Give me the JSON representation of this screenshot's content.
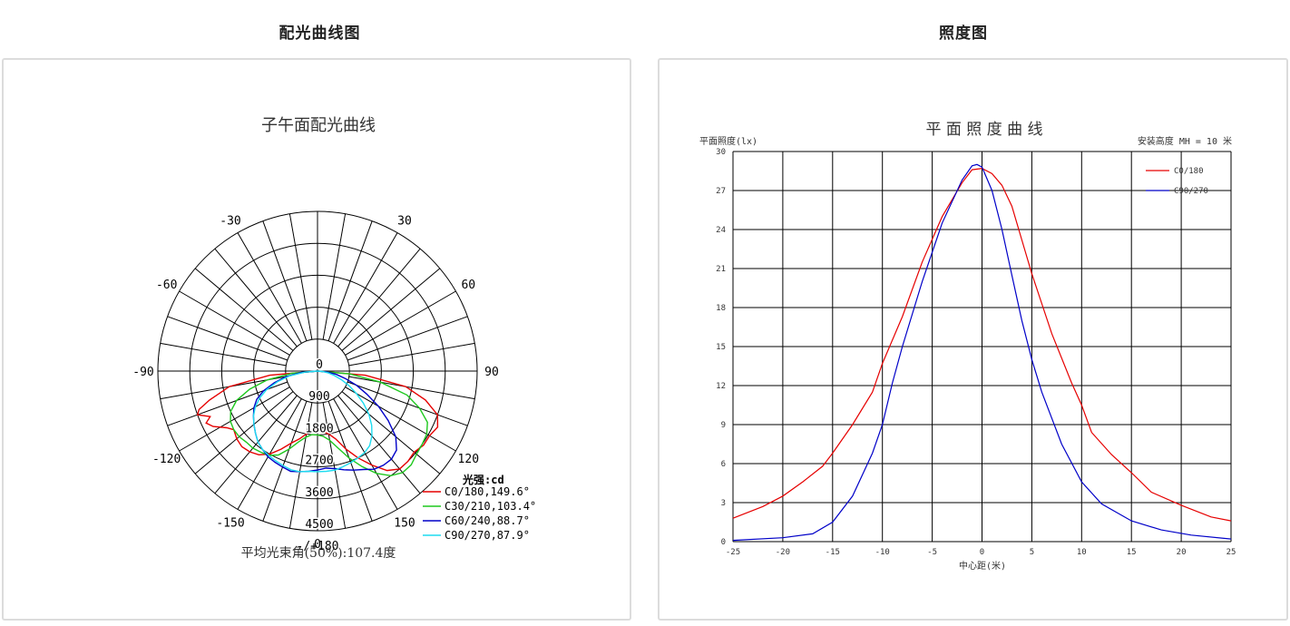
{
  "left_section": {
    "title": "配光曲线图"
  },
  "right_section": {
    "title": "照度图"
  },
  "chart_data": [
    {
      "type": "polar",
      "title": "子午面配光曲线",
      "angle_labels": [
        {
          "angle": 180,
          "text": "-/+180"
        },
        {
          "angle": 150,
          "text": "150"
        },
        {
          "angle": 120,
          "text": "120"
        },
        {
          "angle": 90,
          "text": "90"
        },
        {
          "angle": 60,
          "text": "60"
        },
        {
          "angle": 30,
          "text": "30"
        },
        {
          "angle": 0,
          "text": "0"
        },
        {
          "angle": -30,
          "text": "-30"
        },
        {
          "angle": -60,
          "text": "-60"
        },
        {
          "angle": -90,
          "text": "-90"
        },
        {
          "angle": -120,
          "text": "-120"
        },
        {
          "angle": -150,
          "text": "-150"
        }
      ],
      "radial_ticks": [
        "0",
        "900",
        "1800",
        "2700",
        "3600",
        "4500"
      ],
      "r_max": 5000,
      "unit_label": "光强:cd",
      "footer": "平均光束角(50%):107.4度",
      "series": [
        {
          "name": "C0/180,149.6°",
          "color": "#e60000",
          "points": [
            [
              -85,
              1500
            ],
            [
              -80,
              2800
            ],
            [
              -75,
              3500
            ],
            [
              -72,
              3900
            ],
            [
              -70,
              4000
            ],
            [
              -67,
              3650
            ],
            [
              -65,
              3850
            ],
            [
              -62,
              3700
            ],
            [
              -58,
              3350
            ],
            [
              -55,
              3200
            ],
            [
              -50,
              3300
            ],
            [
              -45,
              3350
            ],
            [
              -40,
              3300
            ],
            [
              -35,
              3200
            ],
            [
              -30,
              3000
            ],
            [
              -25,
              2700
            ],
            [
              -20,
              2400
            ],
            [
              -15,
              2200
            ],
            [
              -10,
              2000
            ],
            [
              -5,
              1850
            ],
            [
              0,
              1800
            ],
            [
              5,
              1900
            ],
            [
              10,
              2000
            ],
            [
              15,
              2200
            ],
            [
              20,
              2600
            ],
            [
              25,
              3000
            ],
            [
              30,
              3400
            ],
            [
              35,
              3800
            ],
            [
              40,
              4000
            ],
            [
              45,
              4000
            ],
            [
              50,
              3950
            ],
            [
              55,
              4050
            ],
            [
              60,
              4050
            ],
            [
              65,
              4150
            ],
            [
              70,
              4000
            ],
            [
              75,
              3500
            ],
            [
              80,
              2800
            ],
            [
              85,
              1500
            ]
          ]
        },
        {
          "name": "C30/210,103.4°",
          "color": "#1ec81e",
          "points": [
            [
              -85,
              800
            ],
            [
              -80,
              1600
            ],
            [
              -75,
              2200
            ],
            [
              -70,
              2700
            ],
            [
              -65,
              3000
            ],
            [
              -60,
              3150
            ],
            [
              -55,
              3200
            ],
            [
              -50,
              3200
            ],
            [
              -45,
              3150
            ],
            [
              -40,
              3150
            ],
            [
              -35,
              3100
            ],
            [
              -30,
              3050
            ],
            [
              -25,
              2900
            ],
            [
              -20,
              2600
            ],
            [
              -15,
              2300
            ],
            [
              -10,
              2100
            ],
            [
              -5,
              2000
            ],
            [
              0,
              2000
            ],
            [
              5,
              2050
            ],
            [
              10,
              2200
            ],
            [
              15,
              2500
            ],
            [
              20,
              2900
            ],
            [
              25,
              3300
            ],
            [
              30,
              3700
            ],
            [
              35,
              4000
            ],
            [
              40,
              4150
            ],
            [
              45,
              4150
            ],
            [
              50,
              4050
            ],
            [
              55,
              4000
            ],
            [
              60,
              3950
            ],
            [
              65,
              3800
            ],
            [
              70,
              3400
            ],
            [
              75,
              2900
            ],
            [
              80,
              2000
            ],
            [
              85,
              1000
            ]
          ]
        },
        {
          "name": "C60/240,88.7°",
          "color": "#0000c8",
          "points": [
            [
              -85,
              500
            ],
            [
              -80,
              1000
            ],
            [
              -75,
              1400
            ],
            [
              -70,
              1800
            ],
            [
              -65,
              2100
            ],
            [
              -60,
              2300
            ],
            [
              -55,
              2450
            ],
            [
              -50,
              2600
            ],
            [
              -45,
              2750
            ],
            [
              -40,
              2900
            ],
            [
              -35,
              3000
            ],
            [
              -30,
              3100
            ],
            [
              -25,
              3150
            ],
            [
              -20,
              3200
            ],
            [
              -15,
              3250
            ],
            [
              -10,
              3200
            ],
            [
              -5,
              3150
            ],
            [
              0,
              3100
            ],
            [
              5,
              3050
            ],
            [
              10,
              3100
            ],
            [
              15,
              3200
            ],
            [
              20,
              3300
            ],
            [
              25,
              3400
            ],
            [
              30,
              3550
            ],
            [
              35,
              3600
            ],
            [
              40,
              3600
            ],
            [
              45,
              3500
            ],
            [
              50,
              3200
            ],
            [
              55,
              2700
            ],
            [
              60,
              2200
            ],
            [
              65,
              1700
            ],
            [
              70,
              1300
            ],
            [
              75,
              900
            ],
            [
              80,
              600
            ],
            [
              85,
              300
            ]
          ]
        },
        {
          "name": "C90/270,87.9°",
          "color": "#1edcf0",
          "points": [
            [
              -85,
              400
            ],
            [
              -80,
              900
            ],
            [
              -75,
              1300
            ],
            [
              -70,
              1700
            ],
            [
              -65,
              2000
            ],
            [
              -60,
              2250
            ],
            [
              -55,
              2450
            ],
            [
              -50,
              2600
            ],
            [
              -45,
              2750
            ],
            [
              -40,
              2900
            ],
            [
              -35,
              3000
            ],
            [
              -30,
              3050
            ],
            [
              -25,
              3100
            ],
            [
              -20,
              3150
            ],
            [
              -15,
              3200
            ],
            [
              -10,
              3200
            ],
            [
              -5,
              3150
            ],
            [
              0,
              3150
            ],
            [
              5,
              3150
            ],
            [
              10,
              3150
            ],
            [
              15,
              3100
            ],
            [
              20,
              3050
            ],
            [
              25,
              3000
            ],
            [
              30,
              2950
            ],
            [
              35,
              2850
            ],
            [
              40,
              2650
            ],
            [
              45,
              2400
            ],
            [
              50,
              2100
            ],
            [
              55,
              1750
            ],
            [
              60,
              1400
            ],
            [
              65,
              1100
            ],
            [
              70,
              800
            ],
            [
              75,
              550
            ],
            [
              80,
              350
            ],
            [
              85,
              150
            ]
          ]
        }
      ]
    },
    {
      "type": "line",
      "title": "平 面 照 度 曲 线",
      "ylabel": "平面照度(lx)",
      "xlabel": "中心距(米)",
      "note": "安装高度 MH = 10 米",
      "xlim": [
        -25,
        25
      ],
      "ylim": [
        0,
        30
      ],
      "xticks": [
        "-25",
        "-20",
        "-15",
        "-10",
        "-5",
        "0",
        "5",
        "10",
        "15",
        "20",
        "25"
      ],
      "yticks": [
        "0",
        "3",
        "6",
        "9",
        "12",
        "15",
        "18",
        "21",
        "24",
        "27",
        "30"
      ],
      "x_gridlines": [
        -25,
        -20,
        -15,
        -10,
        -5,
        0,
        5,
        10,
        15,
        20,
        25
      ],
      "y_gridlines": [
        0,
        3,
        6,
        9,
        12,
        15,
        18,
        21,
        24,
        27,
        30
      ],
      "series": [
        {
          "name": "C0/180",
          "color": "#e60000",
          "points": [
            [
              -25,
              1.8
            ],
            [
              -22,
              2.7
            ],
            [
              -20,
              3.5
            ],
            [
              -18,
              4.6
            ],
            [
              -16,
              5.8
            ],
            [
              -15,
              6.8
            ],
            [
              -13,
              9.0
            ],
            [
              -11,
              11.5
            ],
            [
              -10,
              13.7
            ],
            [
              -8,
              17.3
            ],
            [
              -6,
              21.5
            ],
            [
              -4,
              25.0
            ],
            [
              -2,
              27.6
            ],
            [
              -1,
              28.6
            ],
            [
              0,
              28.7
            ],
            [
              1,
              28.3
            ],
            [
              2,
              27.4
            ],
            [
              3,
              25.8
            ],
            [
              4,
              23.2
            ],
            [
              5,
              20.6
            ],
            [
              7,
              16.0
            ],
            [
              9,
              12.2
            ],
            [
              10,
              10.5
            ],
            [
              11,
              8.4
            ],
            [
              13,
              6.7
            ],
            [
              15,
              5.3
            ],
            [
              17,
              3.8
            ],
            [
              20,
              2.8
            ],
            [
              23,
              1.9
            ],
            [
              25,
              1.6
            ]
          ]
        },
        {
          "name": "C90/270",
          "color": "#0000c8",
          "points": [
            [
              -25,
              0.1
            ],
            [
              -20,
              0.3
            ],
            [
              -17,
              0.6
            ],
            [
              -15,
              1.5
            ],
            [
              -13,
              3.5
            ],
            [
              -11,
              6.8
            ],
            [
              -10,
              9.0
            ],
            [
              -9,
              12.2
            ],
            [
              -8,
              15.0
            ],
            [
              -6,
              20.0
            ],
            [
              -4,
              24.5
            ],
            [
              -2,
              27.8
            ],
            [
              -1,
              28.9
            ],
            [
              -0.5,
              29.0
            ],
            [
              0,
              28.8
            ],
            [
              1,
              27.0
            ],
            [
              2,
              24.0
            ],
            [
              3,
              20.5
            ],
            [
              4,
              17.0
            ],
            [
              5,
              14.0
            ],
            [
              6,
              11.5
            ],
            [
              8,
              7.5
            ],
            [
              10,
              4.6
            ],
            [
              12,
              2.9
            ],
            [
              15,
              1.6
            ],
            [
              18,
              0.9
            ],
            [
              21,
              0.5
            ],
            [
              25,
              0.2
            ]
          ]
        }
      ]
    }
  ]
}
